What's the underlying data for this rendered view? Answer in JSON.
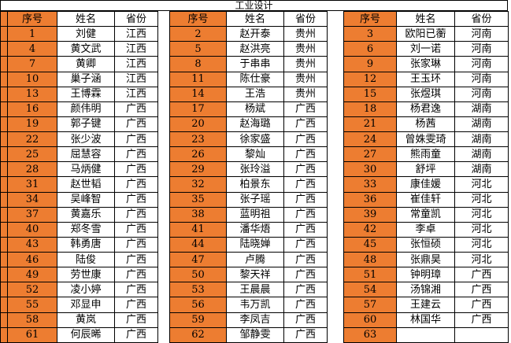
{
  "title": "工业设计",
  "columns": [
    "序号",
    "姓名",
    "省份"
  ],
  "colors": {
    "accent_orange": "#ED7D31",
    "border": "#000000"
  },
  "groups": [
    {
      "rows": [
        {
          "no": "1",
          "name": "刘健",
          "province": "江西"
        },
        {
          "no": "4",
          "name": "黄文武",
          "province": "江西"
        },
        {
          "no": "7",
          "name": "黄卿",
          "province": "江西"
        },
        {
          "no": "10",
          "name": "巢子涵",
          "province": "江西"
        },
        {
          "no": "13",
          "name": "王博霖",
          "province": "江西"
        },
        {
          "no": "16",
          "name": "颜伟明",
          "province": "广西"
        },
        {
          "no": "19",
          "name": "郭子键",
          "province": "广西"
        },
        {
          "no": "22",
          "name": "张少波",
          "province": "广西"
        },
        {
          "no": "25",
          "name": "屈慧容",
          "province": "广西"
        },
        {
          "no": "28",
          "name": "马炳健",
          "province": "广西"
        },
        {
          "no": "31",
          "name": "赵世韬",
          "province": "广西"
        },
        {
          "no": "34",
          "name": "吴峰智",
          "province": "广西"
        },
        {
          "no": "37",
          "name": "黄嘉乐",
          "province": "广西"
        },
        {
          "no": "40",
          "name": "郑冬雪",
          "province": "广西"
        },
        {
          "no": "43",
          "name": "韩勇唐",
          "province": "广西"
        },
        {
          "no": "46",
          "name": "陆俊",
          "province": "广西"
        },
        {
          "no": "49",
          "name": "劳世康",
          "province": "广西"
        },
        {
          "no": "52",
          "name": "凌小婷",
          "province": "广西"
        },
        {
          "no": "55",
          "name": "邓显申",
          "province": "广西"
        },
        {
          "no": "58",
          "name": "黄岚",
          "province": "广西"
        },
        {
          "no": "61",
          "name": "何辰晞",
          "province": "广西"
        }
      ]
    },
    {
      "rows": [
        {
          "no": "2",
          "name": "赵开泰",
          "province": "贵州"
        },
        {
          "no": "5",
          "name": "赵洪亮",
          "province": "贵州"
        },
        {
          "no": "8",
          "name": "于串串",
          "province": "贵州"
        },
        {
          "no": "11",
          "name": "陈仕豪",
          "province": "贵州"
        },
        {
          "no": "14",
          "name": "王浩",
          "province": "贵州"
        },
        {
          "no": "17",
          "name": "杨斌",
          "province": "广西"
        },
        {
          "no": "20",
          "name": "赵海璐",
          "province": "广西"
        },
        {
          "no": "23",
          "name": "徐家盛",
          "province": "广西"
        },
        {
          "no": "26",
          "name": "黎灿",
          "province": "广西"
        },
        {
          "no": "29",
          "name": "张玲溢",
          "province": "广西"
        },
        {
          "no": "32",
          "name": "柏景东",
          "province": "广西"
        },
        {
          "no": "35",
          "name": "张子瑶",
          "province": "广西"
        },
        {
          "no": "38",
          "name": "蓝明祖",
          "province": "广西"
        },
        {
          "no": "41",
          "name": "潘华焐",
          "province": "广西"
        },
        {
          "no": "44",
          "name": "陆晓婵",
          "province": "广西"
        },
        {
          "no": "47",
          "name": "卢腾",
          "province": "广西"
        },
        {
          "no": "50",
          "name": "黎天祥",
          "province": "广西"
        },
        {
          "no": "53",
          "name": "王晨晨",
          "province": "广西"
        },
        {
          "no": "56",
          "name": "韦万凯",
          "province": "广西"
        },
        {
          "no": "59",
          "name": "李凤吉",
          "province": "广西"
        },
        {
          "no": "62",
          "name": "邹静雯",
          "province": "广西"
        }
      ]
    },
    {
      "rows": [
        {
          "no": "3",
          "name": "欧阳已蘅",
          "province": "河南"
        },
        {
          "no": "6",
          "name": "刘一诺",
          "province": "河南"
        },
        {
          "no": "9",
          "name": "张家琳",
          "province": "河南"
        },
        {
          "no": "12",
          "name": "王玉环",
          "province": "河南"
        },
        {
          "no": "15",
          "name": "张煜琪",
          "province": "河南"
        },
        {
          "no": "18",
          "name": "杨君逸",
          "province": "湖南"
        },
        {
          "no": "21",
          "name": "杨茜",
          "province": "湖南"
        },
        {
          "no": "24",
          "name": "曾姝雯琦",
          "province": "湖南"
        },
        {
          "no": "27",
          "name": "熊雨童",
          "province": "湖南"
        },
        {
          "no": "30",
          "name": "舒坪",
          "province": "湖南"
        },
        {
          "no": "33",
          "name": "康佳媛",
          "province": "河北"
        },
        {
          "no": "36",
          "name": "崔佳轩",
          "province": "河北"
        },
        {
          "no": "39",
          "name": "常童凯",
          "province": "河北"
        },
        {
          "no": "42",
          "name": "李卓",
          "province": "河北"
        },
        {
          "no": "45",
          "name": "张恒硕",
          "province": "河北"
        },
        {
          "no": "48",
          "name": "张鼎昊",
          "province": "河北"
        },
        {
          "no": "51",
          "name": "钟明璋",
          "province": "广西"
        },
        {
          "no": "54",
          "name": "汤锦湘",
          "province": "广西"
        },
        {
          "no": "57",
          "name": "王建云",
          "province": "广西"
        },
        {
          "no": "60",
          "name": "林国华",
          "province": "广西"
        },
        {
          "no": "63",
          "name": "",
          "province": ""
        }
      ]
    }
  ]
}
